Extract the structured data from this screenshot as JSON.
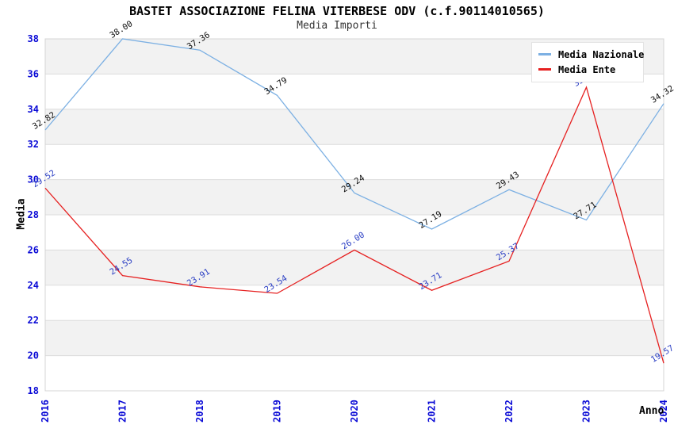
{
  "page": {
    "title": "BASTET ASSOCIAZIONE FELINA VITERBESE ODV (c.f.90114010565)",
    "subtitle": "Media Importi"
  },
  "axes": {
    "x_label": "Anno",
    "y_label": "Media"
  },
  "chart_data": {
    "type": "line",
    "title": "BASTET ASSOCIAZIONE FELINA VITERBESE ODV (c.f.90114010565)",
    "subtitle": "Media Importi",
    "xlabel": "Anno",
    "ylabel": "Media",
    "categories": [
      "2016",
      "2017",
      "2018",
      "2019",
      "2020",
      "2021",
      "2022",
      "2023",
      "2024"
    ],
    "series": [
      {
        "name": "Media Nazionale",
        "color": "#7CB0E3",
        "label_color": "#111111",
        "values": [
          32.82,
          38.0,
          37.36,
          34.79,
          29.24,
          27.19,
          29.43,
          27.71,
          34.32
        ]
      },
      {
        "name": "Media Ente",
        "color": "#E62020",
        "label_color": "#2B3FC4",
        "values": [
          29.52,
          24.55,
          23.91,
          23.54,
          26.0,
          23.71,
          25.37,
          35.25,
          19.57
        ]
      }
    ],
    "ylim": [
      18,
      38
    ],
    "ytick_step": 2,
    "grid": true,
    "background_bands": true,
    "legend_position": "top-right",
    "value_labels": true
  },
  "colors": {
    "axis_tick": "#0B0BD6",
    "grid": "#DCDCDC",
    "band": "#F2F2F2",
    "plot_border": "#D4D4D4",
    "legend_bg": "#FFFFFF"
  }
}
